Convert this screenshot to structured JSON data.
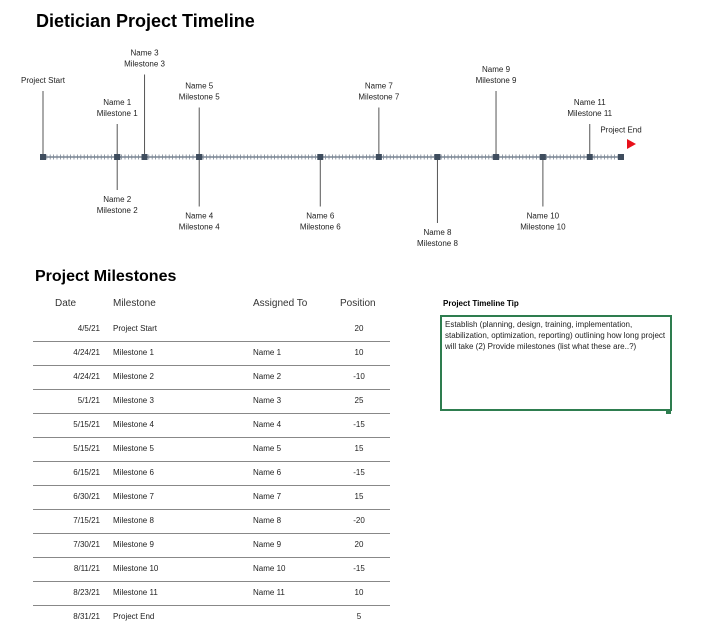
{
  "title": "Dietician Project Timeline",
  "section_title": "Project Milestones",
  "table": {
    "columns": [
      "Date",
      "Milestone",
      "Assigned To",
      "Position"
    ],
    "rows": [
      [
        "4/5/21",
        "Project Start",
        null,
        20
      ],
      [
        "4/24/21",
        "Milestone 1",
        "Name 1",
        10
      ],
      [
        "4/24/21",
        "Milestone 2",
        "Name 2",
        -10
      ],
      [
        "5/1/21",
        "Milestone 3",
        "Name 3",
        25
      ],
      [
        "5/15/21",
        "Milestone 4",
        "Name 4",
        -15
      ],
      [
        "5/15/21",
        "Milestone 5",
        "Name 5",
        15
      ],
      [
        "6/15/21",
        "Milestone 6",
        "Name 6",
        -15
      ],
      [
        "6/30/21",
        "Milestone 7",
        "Name 7",
        15
      ],
      [
        "7/15/21",
        "Milestone 8",
        "Name 8",
        -20
      ],
      [
        "7/30/21",
        "Milestone 9",
        "Name 9",
        20
      ],
      [
        "8/11/21",
        "Milestone 10",
        "Name 10",
        -15
      ],
      [
        "8/23/21",
        "Milestone 11",
        "Name 11",
        10
      ],
      [
        "8/31/21",
        "Project End",
        null,
        5
      ]
    ]
  },
  "tip": {
    "title": "Project Timeline Tip",
    "text": "Establish  (planning, design, training, implementation, stabilization, optimization, reporting)  outlining how long project will take (2) Provide milestones (list what these are..?)"
  }
}
